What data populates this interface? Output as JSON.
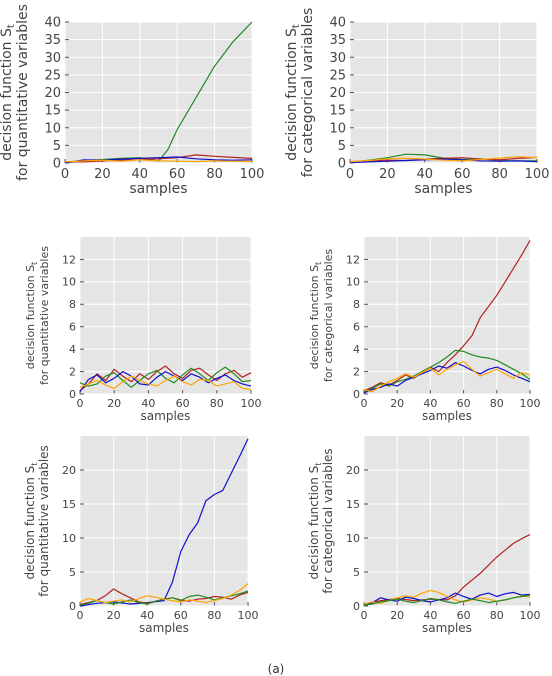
{
  "figure": {
    "caption": "(a)"
  },
  "colors": {
    "red": "#b22222",
    "green": "#228b22",
    "blue": "#1010d0",
    "orange": "#ffa500",
    "panel_bg": "#e5e5e5",
    "grid": "#ffffff"
  },
  "chart_data": [
    {
      "type": "line",
      "xlabel": "samples",
      "ylabel_main": "decision function S",
      "ylabel_sub": "t",
      "ylabel_line2": "for quantitative variables",
      "xlim": [
        0,
        100
      ],
      "ylim": [
        0,
        40
      ],
      "xticks": [
        "0",
        "20",
        "40",
        "60",
        "80",
        "100"
      ],
      "yticks": [
        "0",
        "5",
        "10",
        "15",
        "20",
        "25",
        "30",
        "35",
        "40"
      ],
      "series": [
        {
          "color": "#228b22",
          "x": [
            0,
            10,
            20,
            30,
            40,
            50,
            55,
            60,
            70,
            80,
            90,
            100
          ],
          "y": [
            0,
            0.7,
            1.0,
            1.3,
            1.5,
            0.5,
            3.8,
            9.5,
            18.5,
            27.5,
            34.5,
            41.0
          ]
        },
        {
          "color": "#b22222",
          "x": [
            0,
            10,
            20,
            30,
            40,
            50,
            60,
            70,
            80,
            90,
            100
          ],
          "y": [
            0.4,
            0.3,
            0.6,
            0.8,
            0.9,
            1.2,
            1.5,
            2.3,
            1.9,
            1.6,
            1.3
          ]
        },
        {
          "color": "#1010d0",
          "x": [
            0,
            10,
            20,
            30,
            40,
            50,
            60,
            70,
            80,
            90,
            100
          ],
          "y": [
            0,
            0.9,
            0.8,
            1.1,
            1.3,
            1.5,
            1.7,
            1.2,
            0.9,
            0.8,
            0.9
          ]
        },
        {
          "color": "#ffa500",
          "x": [
            0,
            10,
            20,
            30,
            40,
            50,
            60,
            70,
            80,
            90,
            100
          ],
          "y": [
            0.3,
            0.6,
            0.8,
            0.5,
            0.9,
            0.6,
            0.5,
            0.4,
            0.6,
            0.5,
            0.4
          ]
        }
      ]
    },
    {
      "type": "line",
      "xlabel": "samples",
      "ylabel_main": "decision function S",
      "ylabel_sub": "t",
      "ylabel_line2": "for categorical variables",
      "xlim": [
        0,
        100
      ],
      "ylim": [
        0,
        40
      ],
      "xticks": [
        "0",
        "20",
        "40",
        "60",
        "80",
        "100"
      ],
      "yticks": [
        "0",
        "5",
        "10",
        "15",
        "20",
        "25",
        "30",
        "35",
        "40"
      ],
      "series": [
        {
          "color": "#228b22",
          "x": [
            0,
            10,
            20,
            30,
            40,
            50,
            60,
            70,
            80,
            90,
            100
          ],
          "y": [
            0.2,
            0.8,
            1.5,
            2.5,
            2.3,
            1.4,
            1.0,
            1.2,
            0.7,
            0.6,
            0.6
          ]
        },
        {
          "color": "#b22222",
          "x": [
            0,
            10,
            20,
            30,
            40,
            50,
            60,
            70,
            80,
            90,
            100
          ],
          "y": [
            0.4,
            0.6,
            0.8,
            0.7,
            1.1,
            1.3,
            1.5,
            1.1,
            0.9,
            1.3,
            1.6
          ]
        },
        {
          "color": "#1010d0",
          "x": [
            0,
            10,
            20,
            30,
            40,
            50,
            60,
            70,
            80,
            90,
            100
          ],
          "y": [
            0.1,
            0.3,
            0.5,
            0.7,
            0.9,
            1.1,
            0.9,
            0.6,
            0.5,
            0.6,
            0.4
          ]
        },
        {
          "color": "#ffa500",
          "x": [
            0,
            10,
            20,
            30,
            40,
            50,
            60,
            70,
            80,
            90,
            100
          ],
          "y": [
            0.3,
            0.7,
            1.2,
            1.4,
            1.1,
            0.8,
            0.6,
            1.0,
            1.4,
            1.8,
            1.5
          ]
        }
      ]
    },
    {
      "type": "line",
      "xlabel": "samples",
      "ylabel_main": "decision function S",
      "ylabel_sub": "t",
      "ylabel_line2": "for quantitative variables",
      "xlim": [
        0,
        100
      ],
      "ylim": [
        0,
        14
      ],
      "xticks": [
        "0",
        "20",
        "40",
        "60",
        "80",
        "100"
      ],
      "yticks": [
        "0",
        "2",
        "4",
        "6",
        "8",
        "10",
        "12"
      ],
      "series": [
        {
          "color": "#b22222",
          "x": [
            0,
            5,
            10,
            15,
            20,
            25,
            30,
            35,
            40,
            45,
            50,
            55,
            60,
            65,
            70,
            75,
            80,
            85,
            90,
            95,
            100
          ],
          "y": [
            0.3,
            0.9,
            1.8,
            1.2,
            2.2,
            1.6,
            1.1,
            1.8,
            1.3,
            2.0,
            2.5,
            1.8,
            1.4,
            2.1,
            2.3,
            1.7,
            1.2,
            1.8,
            2.1,
            1.5,
            1.9
          ]
        },
        {
          "color": "#228b22",
          "x": [
            0,
            5,
            10,
            15,
            20,
            25,
            30,
            35,
            40,
            45,
            50,
            55,
            60,
            65,
            70,
            75,
            80,
            85,
            90,
            95,
            100
          ],
          "y": [
            1.0,
            0.7,
            0.9,
            1.6,
            1.9,
            1.2,
            0.6,
            1.2,
            1.8,
            2.1,
            1.4,
            1.0,
            1.7,
            2.3,
            1.8,
            1.2,
            1.9,
            2.4,
            1.8,
            1.1,
            1.2
          ]
        },
        {
          "color": "#1010d0",
          "x": [
            0,
            5,
            10,
            15,
            20,
            25,
            30,
            35,
            40,
            45,
            50,
            55,
            60,
            65,
            70,
            75,
            80,
            85,
            90,
            95,
            100
          ],
          "y": [
            0.2,
            1.3,
            1.7,
            1.0,
            1.4,
            2.0,
            1.6,
            0.9,
            0.8,
            1.5,
            2.0,
            1.6,
            1.2,
            1.8,
            1.5,
            1.0,
            1.4,
            1.7,
            1.2,
            0.9,
            0.7
          ]
        },
        {
          "color": "#ffa500",
          "x": [
            0,
            5,
            10,
            15,
            20,
            25,
            30,
            35,
            40,
            45,
            50,
            55,
            60,
            65,
            70,
            75,
            80,
            85,
            90,
            95,
            100
          ],
          "y": [
            0.6,
            0.9,
            1.2,
            0.8,
            0.5,
            1.1,
            1.6,
            1.2,
            0.9,
            0.7,
            1.2,
            1.6,
            1.1,
            0.8,
            1.3,
            1.2,
            0.7,
            0.9,
            1.1,
            0.5,
            0.4
          ]
        }
      ]
    },
    {
      "type": "line",
      "xlabel": "samples",
      "ylabel_main": "decision function S",
      "ylabel_sub": "t",
      "ylabel_line2": "for categorical variables",
      "xlim": [
        0,
        100
      ],
      "ylim": [
        0,
        14
      ],
      "xticks": [
        "0",
        "20",
        "40",
        "60",
        "80",
        "100"
      ],
      "yticks": [
        "0",
        "2",
        "4",
        "6",
        "8",
        "10",
        "12"
      ],
      "series": [
        {
          "color": "#b22222",
          "x": [
            0,
            5,
            10,
            15,
            20,
            25,
            30,
            35,
            40,
            45,
            50,
            55,
            60,
            65,
            70,
            75,
            80,
            85,
            90,
            95,
            100
          ],
          "y": [
            0.3,
            0.6,
            1.0,
            0.8,
            1.2,
            1.7,
            1.4,
            2.0,
            2.4,
            2.0,
            2.8,
            3.5,
            4.3,
            5.2,
            6.8,
            7.8,
            8.8,
            10.0,
            11.2,
            12.4,
            13.7
          ]
        },
        {
          "color": "#228b22",
          "x": [
            0,
            5,
            10,
            15,
            20,
            25,
            30,
            35,
            40,
            45,
            50,
            55,
            60,
            65,
            70,
            75,
            80,
            85,
            90,
            95,
            100
          ],
          "y": [
            0.2,
            0.5,
            0.9,
            0.7,
            1.1,
            1.3,
            1.6,
            2.0,
            2.4,
            2.8,
            3.3,
            3.9,
            3.8,
            3.5,
            3.3,
            3.2,
            3.0,
            2.6,
            2.2,
            1.8,
            1.3
          ]
        },
        {
          "color": "#1010d0",
          "x": [
            0,
            5,
            10,
            15,
            20,
            25,
            30,
            35,
            40,
            45,
            50,
            55,
            60,
            65,
            70,
            75,
            80,
            85,
            90,
            95,
            100
          ],
          "y": [
            0.1,
            0.4,
            0.6,
            0.9,
            0.7,
            1.2,
            1.5,
            1.8,
            2.1,
            2.5,
            2.3,
            2.8,
            2.5,
            2.1,
            1.8,
            2.2,
            2.4,
            2.1,
            1.7,
            1.4,
            1.1
          ]
        },
        {
          "color": "#ffa500",
          "x": [
            0,
            5,
            10,
            15,
            20,
            25,
            30,
            35,
            40,
            45,
            50,
            55,
            60,
            65,
            70,
            75,
            80,
            85,
            90,
            95,
            100
          ],
          "y": [
            0.4,
            0.2,
            0.7,
            1.1,
            1.4,
            1.8,
            1.5,
            1.9,
            2.3,
            1.7,
            2.2,
            2.6,
            2.9,
            2.2,
            1.6,
            1.9,
            2.2,
            1.8,
            1.4,
            1.9,
            1.7
          ]
        }
      ]
    },
    {
      "type": "line",
      "xlabel": "samples",
      "ylabel_main": "decision function S",
      "ylabel_sub": "t",
      "ylabel_line2": "for quantitative variables",
      "xlim": [
        0,
        100
      ],
      "ylim": [
        0,
        25
      ],
      "xticks": [
        "0",
        "20",
        "40",
        "60",
        "80",
        "100"
      ],
      "yticks": [
        "0",
        "5",
        "10",
        "15",
        "20"
      ],
      "series": [
        {
          "color": "#1010d0",
          "x": [
            0,
            10,
            20,
            30,
            40,
            50,
            55,
            60,
            65,
            70,
            75,
            80,
            85,
            90,
            95,
            100
          ],
          "y": [
            0,
            0.4,
            0.6,
            0.3,
            0.5,
            0.8,
            3.5,
            8.0,
            10.5,
            12.2,
            15.5,
            16.4,
            17.0,
            19.5,
            22.0,
            24.6
          ]
        },
        {
          "color": "#b22222",
          "x": [
            0,
            5,
            10,
            15,
            20,
            25,
            30,
            35,
            40,
            45,
            50,
            55,
            60,
            65,
            70,
            75,
            80,
            85,
            90,
            95,
            100
          ],
          "y": [
            0.2,
            0.5,
            0.8,
            1.5,
            2.5,
            1.8,
            1.2,
            0.6,
            0.4,
            0.7,
            1.0,
            1.2,
            0.9,
            0.7,
            1.0,
            1.1,
            1.4,
            1.3,
            1.0,
            1.6,
            2.0
          ]
        },
        {
          "color": "#228b22",
          "x": [
            0,
            5,
            10,
            15,
            20,
            25,
            30,
            35,
            40,
            45,
            50,
            55,
            60,
            65,
            70,
            75,
            80,
            85,
            90,
            95,
            100
          ],
          "y": [
            0.1,
            0.4,
            0.8,
            0.5,
            0.3,
            0.6,
            0.9,
            0.5,
            0.3,
            0.7,
            1.0,
            1.2,
            0.8,
            1.4,
            1.6,
            1.3,
            0.9,
            1.2,
            1.5,
            1.8,
            2.2
          ]
        },
        {
          "color": "#ffa500",
          "x": [
            0,
            5,
            10,
            15,
            20,
            25,
            30,
            35,
            40,
            45,
            50,
            55,
            60,
            65,
            70,
            75,
            80,
            85,
            90,
            95,
            100
          ],
          "y": [
            0.6,
            1.1,
            0.8,
            0.5,
            0.7,
            0.9,
            0.6,
            1.1,
            1.5,
            1.3,
            1.0,
            0.8,
            0.6,
            0.9,
            0.7,
            0.5,
            0.8,
            1.1,
            1.6,
            2.3,
            3.3
          ]
        }
      ]
    },
    {
      "type": "line",
      "xlabel": "samples",
      "ylabel_main": "decision function S",
      "ylabel_sub": "t",
      "ylabel_line2": "for categorical variables",
      "xlim": [
        0,
        100
      ],
      "ylim": [
        0,
        25
      ],
      "xticks": [
        "0",
        "20",
        "40",
        "60",
        "80",
        "100"
      ],
      "yticks": [
        "0",
        "5",
        "10",
        "15",
        "20"
      ],
      "series": [
        {
          "color": "#b22222",
          "x": [
            0,
            10,
            20,
            30,
            40,
            50,
            55,
            60,
            65,
            70,
            75,
            80,
            85,
            90,
            95,
            100
          ],
          "y": [
            0.2,
            0.8,
            1.1,
            0.8,
            1.0,
            0.9,
            1.5,
            2.8,
            3.8,
            4.8,
            6.0,
            7.2,
            8.2,
            9.2,
            9.9,
            10.5
          ]
        },
        {
          "color": "#1010d0",
          "x": [
            0,
            5,
            10,
            15,
            20,
            25,
            30,
            35,
            40,
            45,
            50,
            55,
            60,
            65,
            70,
            75,
            80,
            85,
            90,
            95,
            100
          ],
          "y": [
            0.1,
            0.5,
            1.2,
            0.9,
            0.7,
            1.3,
            1.1,
            0.8,
            0.6,
            0.9,
            1.2,
            1.9,
            1.4,
            1.0,
            1.6,
            1.9,
            1.4,
            1.8,
            2.0,
            1.6,
            1.7
          ]
        },
        {
          "color": "#ffa500",
          "x": [
            0,
            5,
            10,
            15,
            20,
            25,
            30,
            35,
            40,
            45,
            50,
            55,
            60,
            65,
            70,
            75,
            80,
            85,
            90,
            95,
            100
          ],
          "y": [
            0.3,
            0.6,
            0.4,
            0.8,
            1.2,
            1.5,
            1.3,
            1.9,
            2.3,
            2.0,
            1.4,
            0.9,
            0.6,
            0.9,
            1.2,
            1.0,
            0.7,
            0.9,
            1.2,
            1.5,
            1.3
          ]
        },
        {
          "color": "#228b22",
          "x": [
            0,
            5,
            10,
            15,
            20,
            25,
            30,
            35,
            40,
            45,
            50,
            55,
            60,
            65,
            70,
            75,
            80,
            85,
            90,
            95,
            100
          ],
          "y": [
            0.1,
            0.3,
            0.6,
            0.8,
            1.0,
            0.7,
            0.5,
            0.8,
            1.1,
            0.9,
            0.6,
            0.4,
            0.7,
            1.0,
            0.8,
            0.5,
            0.7,
            0.9,
            1.2,
            1.4,
            1.6
          ]
        }
      ]
    }
  ]
}
